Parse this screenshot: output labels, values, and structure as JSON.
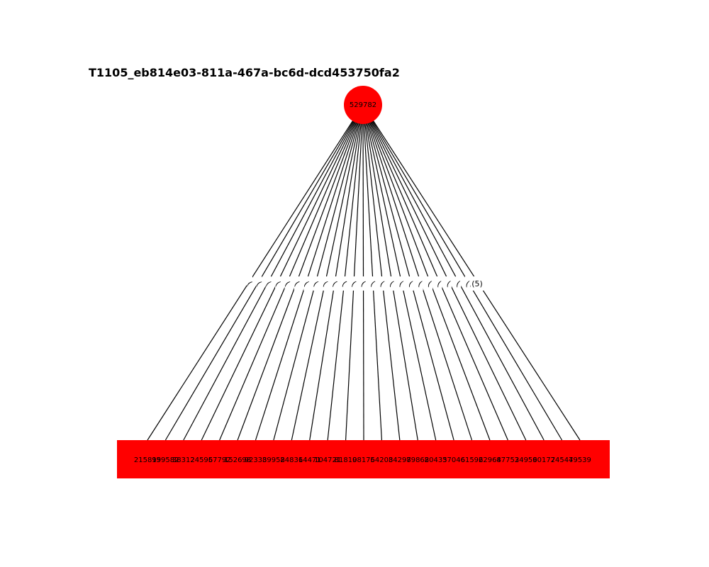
{
  "title": "T1105_eb814e03-811a-467a-bc6d-dcd453750fa2",
  "colors": {
    "node_fill": "#ff0000",
    "edge": "#000000",
    "background": "#ffffff"
  },
  "root": {
    "label": "529782"
  },
  "children": [
    {
      "label": "215899"
    },
    {
      "label": "159582"
    },
    {
      "label": "38312"
    },
    {
      "label": "24595"
    },
    {
      "label": "67792"
    },
    {
      "label": "152698"
    },
    {
      "label": "92338"
    },
    {
      "label": "39958"
    },
    {
      "label": "24836"
    },
    {
      "label": "14471"
    },
    {
      "label": "104721"
    },
    {
      "label": "81810"
    },
    {
      "label": "98176"
    },
    {
      "label": "54208"
    },
    {
      "label": "34298"
    },
    {
      "label": "79868"
    },
    {
      "label": "20435"
    },
    {
      "label": "37046"
    },
    {
      "label": "61592"
    },
    {
      "label": "62964"
    },
    {
      "label": "87752"
    },
    {
      "label": "34959"
    },
    {
      "label": "60177"
    },
    {
      "label": "24547"
    },
    {
      "label": "49539"
    }
  ],
  "edge_labels": [
    "(",
    "(",
    "(",
    "(",
    "(",
    "(",
    "(",
    "(",
    "(",
    "(",
    "(",
    "(",
    "(",
    "(",
    "(",
    "(",
    "(",
    "(",
    "(",
    "(",
    "(",
    "(",
    "(",
    "(",
    "(5)"
  ]
}
